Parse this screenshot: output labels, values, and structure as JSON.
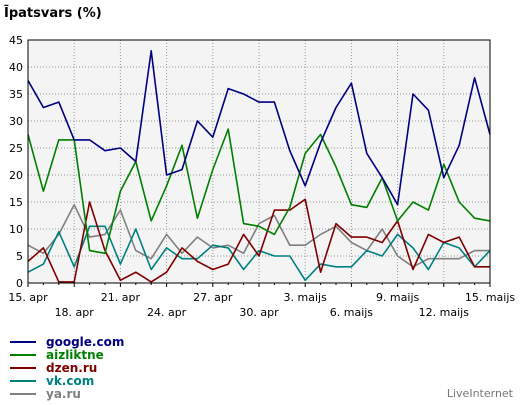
{
  "chart_data": {
    "type": "line",
    "title": "Īpatsvars (%)",
    "xlabel": "",
    "ylabel": "",
    "ylim": [
      0,
      45
    ],
    "yticks": [
      0,
      5,
      10,
      15,
      20,
      25,
      30,
      35,
      40,
      45
    ],
    "grid": true,
    "legend_position": "bottom-left",
    "x_ticks_row1": [
      "15. apr",
      "21. apr",
      "27. apr",
      "3. maijs",
      "9. maijs",
      "15. maijs"
    ],
    "x_ticks_row2": [
      "18. apr",
      "24. apr",
      "30. apr",
      "6. maijs",
      "12. maijs"
    ],
    "series": [
      {
        "name": "google.com",
        "color": "#000080",
        "values": [
          37.5,
          32.5,
          33.5,
          26.5,
          26.5,
          24.5,
          25.0,
          22.5,
          43.0,
          20.0,
          21.0,
          30.0,
          27.0,
          36.0,
          35.0,
          33.5,
          33.5,
          24.5,
          18.0,
          26.0,
          32.5,
          37.0,
          24.0,
          19.5,
          14.5,
          35.0,
          32.0,
          19.5,
          25.5,
          38.0,
          27.5
        ]
      },
      {
        "name": "aizliktne",
        "color": "#008000",
        "values": [
          27.5,
          17.0,
          26.5,
          26.5,
          6.0,
          5.5,
          17.0,
          22.5,
          11.5,
          18.0,
          25.5,
          12.0,
          21.0,
          28.5,
          11.0,
          10.5,
          9.0,
          14.0,
          24.0,
          27.5,
          21.5,
          14.5,
          14.0,
          19.5,
          11.5,
          15.0,
          13.5,
          22.0,
          15.0,
          12.0,
          11.5
        ]
      },
      {
        "name": "dzen.ru",
        "color": "#800000",
        "values": [
          4.0,
          6.5,
          0.2,
          0.2,
          15.0,
          6.0,
          0.5,
          2.0,
          0.2,
          2.0,
          6.5,
          4.0,
          2.5,
          3.5,
          9.0,
          5.0,
          13.5,
          13.5,
          15.5,
          2.0,
          11.0,
          8.5,
          8.5,
          7.5,
          11.5,
          2.5,
          9.0,
          7.5,
          8.5,
          3.0,
          3.0
        ]
      },
      {
        "name": "vk.com",
        "color": "#008080",
        "values": [
          2.0,
          3.5,
          9.5,
          3.0,
          10.5,
          10.5,
          3.5,
          10.0,
          2.5,
          6.5,
          4.5,
          4.5,
          7.0,
          6.5,
          2.5,
          6.0,
          5.0,
          5.0,
          0.5,
          3.5,
          3.0,
          3.0,
          6.0,
          5.0,
          9.0,
          6.5,
          2.5,
          7.5,
          6.5,
          3.0,
          6.0
        ]
      },
      {
        "name": "ya.ru",
        "color": "#808080",
        "values": [
          7.0,
          5.5,
          9.0,
          14.5,
          8.5,
          9.0,
          13.5,
          6.0,
          4.5,
          9.0,
          5.5,
          8.5,
          6.5,
          7.0,
          5.5,
          11.0,
          12.5,
          7.0,
          7.0,
          9.0,
          10.5,
          7.5,
          6.0,
          10.0,
          5.0,
          3.0,
          4.5,
          4.5,
          4.5,
          6.0,
          6.0
        ]
      }
    ]
  },
  "branding": "LiveInternet"
}
